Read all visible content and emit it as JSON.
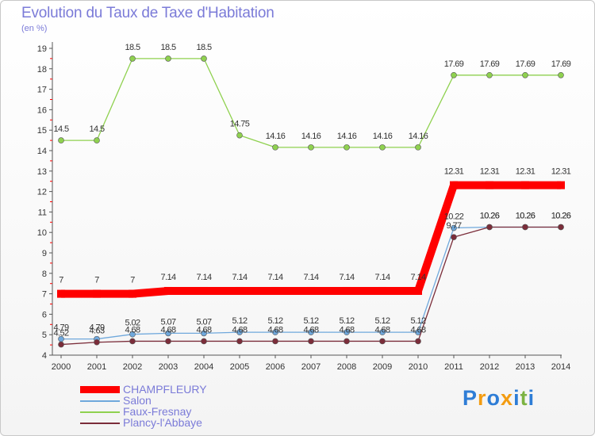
{
  "header": {
    "title": "Evolution du Taux de Taxe d'Habitation",
    "unit": "(en %)"
  },
  "chart_data": {
    "type": "line",
    "title": "Evolution du Taux de Taxe d'Habitation",
    "ylabel": "(en %)",
    "xlabel": "",
    "ylim": [
      4,
      19
    ],
    "yticks": [
      4,
      5,
      6,
      7,
      8,
      9,
      10,
      11,
      12,
      13,
      14,
      15,
      16,
      17,
      18,
      19
    ],
    "grid": false,
    "legend_position": "bottom-left",
    "categories": [
      "2000",
      "2001",
      "2002",
      "2003",
      "2004",
      "2005",
      "2006",
      "2007",
      "2008",
      "2009",
      "2010",
      "2011",
      "2012",
      "2013",
      "2014"
    ],
    "series": [
      {
        "name": "CHAMPFLEURY",
        "color": "#ff0000",
        "values": [
          7,
          7,
          7,
          7.14,
          7.14,
          7.14,
          7.14,
          7.14,
          7.14,
          7.14,
          7.14,
          12.31,
          12.31,
          12.31,
          12.31
        ],
        "labels": [
          "7",
          "7",
          "7",
          "7.14",
          "7.14",
          "7.14",
          "7.14",
          "7.14",
          "7.14",
          "7.14",
          "7.14",
          "12.31",
          "12.31",
          "12.31",
          "12.31"
        ]
      },
      {
        "name": "Salon",
        "color": "#6fa8dc",
        "values": [
          4.79,
          4.79,
          5.02,
          5.07,
          5.07,
          5.12,
          5.12,
          5.12,
          5.12,
          5.12,
          5.12,
          10.22,
          10.26,
          10.26,
          10.26
        ],
        "labels": [
          "4.79",
          "4.79",
          "5.02",
          "5.07",
          "5.07",
          "5.12",
          "5.12",
          "5.12",
          "5.12",
          "5.12",
          "5.12",
          "10.22",
          "10.26",
          "10.26",
          "10.26"
        ]
      },
      {
        "name": "Faux-Fresnay",
        "color": "#8fd14f",
        "values": [
          14.5,
          14.5,
          18.5,
          18.5,
          18.5,
          14.75,
          14.16,
          14.16,
          14.16,
          14.16,
          14.16,
          17.69,
          17.69,
          17.69,
          17.69
        ],
        "labels": [
          "14.5",
          "14.5",
          "18.5",
          "18.5",
          "18.5",
          "14.75",
          "14.16",
          "14.16",
          "14.16",
          "14.16",
          "14.16",
          "17.69",
          "17.69",
          "17.69",
          "17.69"
        ]
      },
      {
        "name": "Plancy-l'Abbaye",
        "color": "#7b2d3a",
        "values": [
          4.52,
          4.63,
          4.68,
          4.68,
          4.68,
          4.68,
          4.68,
          4.68,
          4.68,
          4.68,
          4.68,
          9.77,
          10.26,
          10.26,
          10.26
        ],
        "labels": [
          "4.52",
          "4.63",
          "4.68",
          "4.68",
          "4.68",
          "4.68",
          "4.68",
          "4.68",
          "4.68",
          "4.68",
          "4.68",
          "9.77",
          "10.26",
          "10.26",
          "10.26"
        ]
      }
    ]
  },
  "legend": {
    "items": [
      {
        "label": "CHAMPFLEURY",
        "color": "#ff0000"
      },
      {
        "label": "Salon",
        "color": "#6fa8dc"
      },
      {
        "label": "Faux-Fresnay",
        "color": "#8fd14f"
      },
      {
        "label": "Plancy-l'Abbaye",
        "color": "#7b2d3a"
      }
    ]
  },
  "logo": {
    "text": "Proxiti",
    "letters": [
      "P",
      "r",
      "o",
      "x",
      "i",
      "t",
      "i"
    ],
    "colors": [
      "#2e7dd6",
      "#f39c12",
      "#2e7dd6",
      "#f39c12",
      "#2e7dd6",
      "#7cb342",
      "#2e7dd6"
    ]
  }
}
